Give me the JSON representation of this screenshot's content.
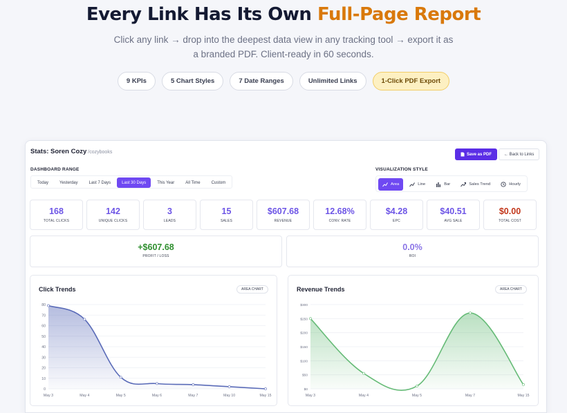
{
  "hero": {
    "title_main": "Every Link Has Its Own ",
    "title_highlight": "Full-Page Report",
    "subtitle_line1": "Click any link → drop into the deepest data view in any tracking tool → export it as",
    "subtitle_line2": "a branded PDF. Client-ready in 60 seconds.",
    "pills": [
      "9 KPIs",
      "5 Chart Styles",
      "7 Date Ranges",
      "Unlimited Links",
      "1-Click PDF Export"
    ]
  },
  "report": {
    "title": "Stats: Soren Cozy",
    "slug": "/cozybooks",
    "save_pdf_label": "Save as PDF",
    "back_label": "← Back to Links",
    "range_label": "DASHBOARD RANGE",
    "ranges": [
      "Today",
      "Yesterday",
      "Last 7 Days",
      "Last 30 Days",
      "This Year",
      "All Time",
      "Custom"
    ],
    "active_range": "Last 30 Days",
    "viz_label": "VISUALIZATION STYLE",
    "viz_styles": [
      {
        "label": "Area",
        "icon": "area-trend-icon"
      },
      {
        "label": "Line",
        "icon": "line-trend-icon"
      },
      {
        "label": "Bar",
        "icon": "bar-chart-icon"
      },
      {
        "label": "Sales Trend",
        "icon": "sales-trend-icon"
      },
      {
        "label": "Hourly",
        "icon": "clock-icon"
      }
    ],
    "active_viz": "Area",
    "kpis": [
      {
        "value": "168",
        "label": "TOTAL CLICKS"
      },
      {
        "value": "142",
        "label": "UNIQUE CLICKS"
      },
      {
        "value": "3",
        "label": "LEADS"
      },
      {
        "value": "15",
        "label": "SALES"
      },
      {
        "value": "$607.68",
        "label": "REVENUE"
      },
      {
        "value": "12.68%",
        "label": "CONV. RATE"
      },
      {
        "value": "$4.28",
        "label": "EPC"
      },
      {
        "value": "$40.51",
        "label": "AVG SALE"
      },
      {
        "value": "$0.00",
        "label": "TOTAL COST"
      }
    ],
    "profit": {
      "value": "+$607.68",
      "label": "PROFIT / LOSS"
    },
    "roi": {
      "value": "0.0%",
      "label": "ROI"
    }
  },
  "colors": {
    "accent": "#6f49f2",
    "kpi_value": "#6d55e6",
    "cost_red": "#c2371b",
    "profit_green": "#2f8f2f",
    "roi_purple": "#8a74e6",
    "highlight_orange": "#d9790b",
    "click_series": "#5a6bb8",
    "revenue_series": "#66bb77"
  },
  "chart_data": [
    {
      "type": "area",
      "title": "Click Trends",
      "badge": "AREA CHART",
      "x": [
        "May 3",
        "May 4",
        "May 5",
        "May 6",
        "May 7",
        "May 10",
        "May 15"
      ],
      "y_ticks": [
        "0",
        "10",
        "20",
        "30",
        "40",
        "50",
        "60",
        "70",
        "80"
      ],
      "ylim": [
        0,
        80
      ],
      "series": [
        {
          "values": [
            79,
            66,
            11,
            5,
            4,
            2,
            0
          ]
        }
      ],
      "grid": true,
      "smooth": true
    },
    {
      "type": "area",
      "title": "Revenue Trends",
      "badge": "AREA CHART",
      "x": [
        "May 3",
        "May 4",
        "May 5",
        "May 7",
        "May 15"
      ],
      "y_ticks": [
        "$0",
        "$50",
        "$100",
        "$150",
        "$200",
        "$250",
        "$300"
      ],
      "ylim": [
        0,
        300
      ],
      "series": [
        {
          "values": [
            250,
            55,
            10,
            270,
            15
          ]
        }
      ],
      "grid": true,
      "smooth": true
    }
  ]
}
